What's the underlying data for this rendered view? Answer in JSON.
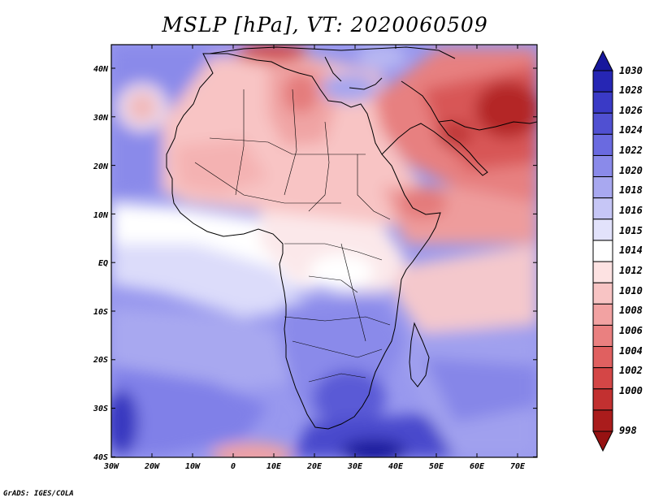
{
  "title": "MSLP [hPa], VT: 2020060509",
  "credit": "GrADS: IGES/COLA",
  "map": {
    "variable": "MSLP",
    "units": "hPa",
    "valid_time": "2020060509",
    "lon_range": [
      -30,
      75
    ],
    "lat_range": [
      -40,
      45
    ],
    "lon_ticks": [
      "30W",
      "20W",
      "10W",
      "0",
      "10E",
      "20E",
      "30E",
      "40E",
      "50E",
      "60E",
      "70E"
    ],
    "lat_ticks": [
      "40N",
      "30N",
      "20N",
      "10N",
      "EQ",
      "10S",
      "20S",
      "30S",
      "40S"
    ]
  },
  "colorbar": {
    "labels": [
      "1030",
      "1028",
      "1026",
      "1024",
      "1022",
      "1020",
      "1018",
      "1016",
      "1015",
      "1014",
      "1012",
      "1010",
      "1008",
      "1006",
      "1004",
      "1002",
      "1000",
      "998"
    ],
    "colors": [
      "#17179c",
      "#2626b4",
      "#3a3ac6",
      "#5050d2",
      "#6a6ae0",
      "#8a8aea",
      "#a8a8f0",
      "#c6c6f6",
      "#e2e2fb",
      "#ffffff",
      "#fde2e2",
      "#f8c4c4",
      "#f2a2a2",
      "#ea8080",
      "#e06060",
      "#d44646",
      "#c23030",
      "#aa1c1c",
      "#961212"
    ]
  }
}
